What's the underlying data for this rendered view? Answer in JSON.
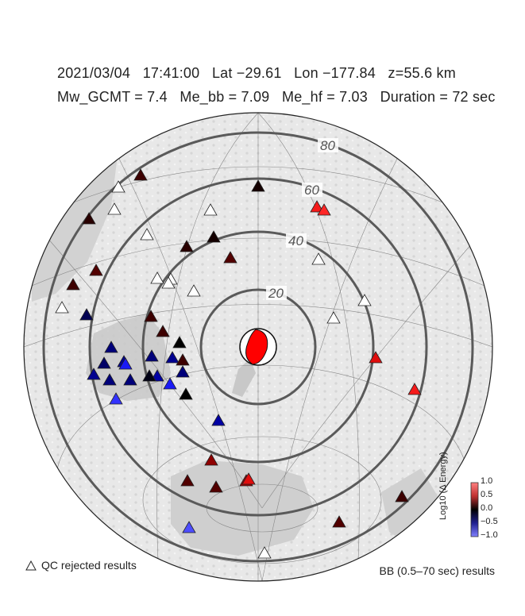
{
  "header": {
    "line1": "2021/03/04   17:41:00   Lat −29.61   Lon −177.84   z=55.6 km",
    "line2": "Mw_GCMT = 7.4   Me_bb = 7.09   Me_hf = 7.03   Duration = 72 sec"
  },
  "distance_rings": [
    {
      "label": "20",
      "deg": 20
    },
    {
      "label": "40",
      "deg": 40
    },
    {
      "label": "60",
      "deg": 60
    },
    {
      "label": "80",
      "deg": 80
    }
  ],
  "colorbar": {
    "title": "Log10 (Δ Energy)",
    "ticks": [
      "1.0",
      "0.5",
      "0.0",
      "−0.5",
      "−1.0"
    ],
    "low_color": "#8080ff",
    "mid_color": "#000000",
    "high_color": "#ff8080"
  },
  "legend": {
    "qc_rejected": "QC rejected results",
    "results": "BB (0.5–70 sec) results"
  },
  "beachball_color": "#ff0000",
  "stations_accepted": [
    {
      "v": 0.15
    },
    {
      "v": 0.1
    },
    {
      "v": 0.6
    },
    {
      "v": 0.65
    },
    {
      "v": 0.05
    },
    {
      "v": 0.05
    },
    {
      "v": 0.1
    },
    {
      "v": 0.2
    },
    {
      "v": 0.15
    },
    {
      "v": 0.2
    },
    {
      "v": -0.2
    },
    {
      "v": 0.15
    },
    {
      "v": -0.3
    },
    {
      "v": 0.15
    },
    {
      "v": 0.0
    },
    {
      "v": -0.25
    },
    {
      "v": 0.55
    },
    {
      "v": 0.6
    },
    {
      "v": -0.35
    },
    {
      "v": -0.6
    },
    {
      "v": -0.3
    },
    {
      "v": -0.35
    },
    {
      "v": -0.4
    },
    {
      "v": -0.6
    },
    {
      "v": -0.3
    },
    {
      "v": -0.35
    },
    {
      "v": -0.3
    },
    {
      "v": -0.7
    },
    {
      "v": 0.0
    },
    {
      "v": -0.3
    },
    {
      "v": -0.05
    },
    {
      "v": -0.4
    },
    {
      "v": 0.35
    },
    {
      "v": 0.2
    },
    {
      "v": 0.2
    },
    {
      "v": 0.4
    },
    {
      "v": 0.55
    },
    {
      "v": 0.15
    },
    {
      "v": -0.8
    },
    {
      "v": 0.2
    },
    {
      "v": 0.15
    }
  ],
  "stations_rejected_count": 13
}
